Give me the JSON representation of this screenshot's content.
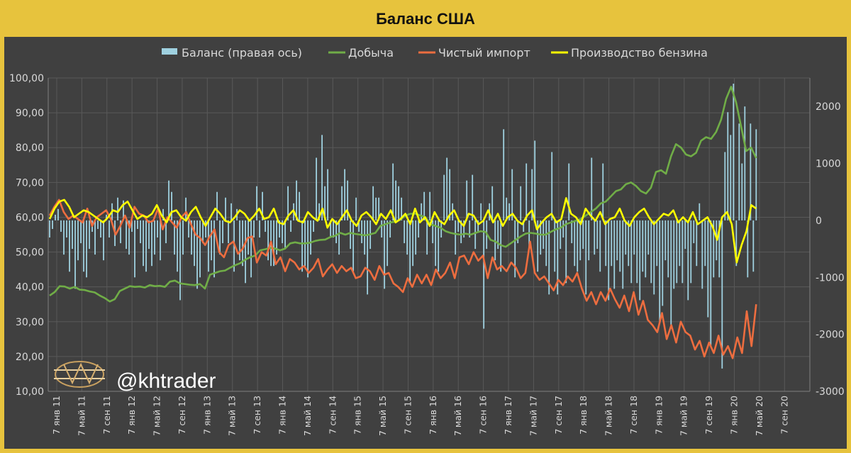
{
  "title": "Баланс США",
  "watermark": "@khtrader",
  "chart_data": {
    "type": "line",
    "title": "Баланс США",
    "left_axis": {
      "ylim": [
        10,
        100
      ],
      "ticks": [
        "10,00",
        "20,00",
        "30,00",
        "40,00",
        "50,00",
        "60,00",
        "70,00",
        "80,00",
        "90,00",
        "100,00"
      ]
    },
    "right_axis": {
      "ylim": [
        -3000,
        2500
      ],
      "ticks": [
        "-3000",
        "-2000",
        "-1000",
        "0",
        "1000",
        "2000"
      ]
    },
    "x_ticks": [
      "7 янв 11",
      "7 май 11",
      "7 сен 11",
      "7 янв 12",
      "7 май 12",
      "7 сен 12",
      "7 янв 13",
      "7 май 13",
      "7 сен 13",
      "7 янв 14",
      "7 май 14",
      "7 сен 14",
      "7 янв 15",
      "7 май 15",
      "7 сен 15",
      "7 янв 16",
      "7 май 16",
      "7 сен 16",
      "7 янв 17",
      "7 май 17",
      "7 сен 17",
      "7 янв 18",
      "7 май 18",
      "7 сен 18",
      "7 янв 19",
      "7 май 19",
      "7 сен 19",
      "7 янв 20",
      "7 май 20",
      "7 сен 20"
    ],
    "grid": true,
    "legend_position": "top",
    "colors": {
      "balance": "#9fd1e0",
      "production": "#70ad47",
      "net_import": "#ed6d3f",
      "gasoline": "#ffff00"
    },
    "series": [
      {
        "name": "Баланс (правая ось)",
        "type": "bar",
        "axis": "right",
        "values": [
          -300,
          -150,
          100,
          200,
          -200,
          -600,
          -300,
          -900,
          -500,
          -1200,
          -700,
          -400,
          -900,
          -1000,
          -500,
          -200,
          -600,
          -150,
          -300,
          -700,
          100,
          -300,
          300,
          -450,
          400,
          -400,
          350,
          -500,
          -600,
          -200,
          -1000,
          -150,
          -400,
          -800,
          -900,
          -500,
          -800,
          -600,
          -300,
          -700,
          200,
          -400,
          700,
          500,
          -600,
          -900,
          -1400,
          -600,
          400,
          -300,
          -600,
          -800,
          -1200,
          -1000,
          -400,
          -300,
          -900,
          -700,
          -1000,
          500,
          -600,
          -400,
          400,
          -400,
          300,
          -900,
          200,
          -700,
          -800,
          -1100,
          -600,
          -1000,
          -300,
          600,
          -300,
          500,
          -200,
          -700,
          -800,
          -800,
          -600,
          -300,
          -400,
          -500,
          600,
          -200,
          300,
          700,
          500,
          -900,
          -800,
          -1000,
          -600,
          -200,
          1100,
          300,
          1500,
          600,
          900,
          -300,
          -300,
          -400,
          -600,
          600,
          900,
          700,
          -500,
          -900,
          400,
          -200,
          -400,
          -600,
          -1300,
          -500,
          600,
          400,
          400,
          -300,
          -1200,
          -800,
          -300,
          1000,
          700,
          600,
          400,
          -400,
          -600,
          -1100,
          -800,
          -600,
          -300,
          300,
          500,
          -600,
          500,
          -400,
          -800,
          -900,
          -300,
          800,
          1100,
          900,
          300,
          -600,
          -200,
          -400,
          -300,
          700,
          -300,
          800,
          -500,
          -200,
          300,
          -1900,
          -500,
          300,
          600,
          -700,
          -500,
          -900,
          1600,
          400,
          300,
          900,
          -1000,
          -400,
          600,
          -200,
          1000,
          -500,
          900,
          1400,
          -900,
          -600,
          -500,
          -800,
          -1300,
          1200,
          -900,
          -1300,
          -500,
          -300,
          -1100,
          1000,
          -400,
          -800,
          -900,
          -700,
          -500,
          -1300,
          -700,
          1100,
          -600,
          -500,
          -900,
          1000,
          -800,
          -1400,
          -800,
          -1200,
          -700,
          -900,
          -1200,
          -600,
          -800,
          -1100,
          -600,
          -1100,
          -1400,
          -900,
          -1000,
          -600,
          -1100,
          -1300,
          -800,
          -1800,
          -1500,
          -700,
          -1000,
          -1900,
          -1200,
          -1100,
          -800,
          -1100,
          -500,
          -1400,
          -1100,
          -400,
          -800,
          300,
          -1200,
          -800,
          -1700,
          -2200,
          -1000,
          -700,
          -1000,
          -2600,
          1200,
          1900,
          1500,
          2400,
          -800,
          1700,
          1000,
          2000,
          -1000,
          1700,
          -900,
          1600
        ]
      },
      {
        "name": "Добыча",
        "type": "line",
        "axis": "left",
        "values": [
          37.5,
          38.5,
          40.2,
          40.1,
          39.5,
          40.0,
          39.2,
          39.1,
          38.7,
          38.4,
          37.5,
          36.8,
          35.8,
          36.5,
          38.8,
          39.5,
          40.2,
          40.0,
          40.1,
          39.8,
          40.5,
          40.2,
          40.3,
          40.0,
          41.5,
          41.8,
          41.0,
          40.8,
          40.6,
          40.5,
          40.8,
          39.5,
          43.5,
          44.0,
          44.5,
          44.7,
          45.5,
          46.2,
          46.8,
          47.8,
          48.5,
          49.0,
          50.5,
          50.8,
          51.2,
          51.0,
          50.5,
          51.0,
          52.5,
          52.8,
          52.5,
          52.5,
          52.7,
          53.2,
          53.5,
          53.6,
          54.3,
          54.7,
          55.5,
          55.0,
          55.5,
          55.2,
          55.0,
          54.8,
          55.1,
          55.5,
          57.5,
          58.0,
          58.5,
          58.8,
          59.3,
          60.5,
          61.0,
          61.0,
          60.5,
          60.0,
          58.0,
          57.5,
          57.0,
          56.0,
          55.5,
          55.2,
          55.0,
          55.3,
          55.0,
          55.5,
          56.0,
          55.8,
          53.5,
          53.0,
          52.0,
          51.5,
          52.5,
          53.5,
          54.5,
          55.3,
          55.5,
          55.3,
          55.0,
          55.0,
          55.8,
          56.5,
          57.0,
          58.0,
          58.5,
          59.0,
          59.5,
          60.5,
          61.5,
          62.5,
          64.0,
          64.5,
          66.0,
          67.5,
          68.0,
          69.5,
          70.0,
          69.0,
          67.5,
          66.8,
          68.5,
          73.0,
          73.5,
          72.5,
          77.5,
          81.0,
          80.0,
          78.0,
          77.5,
          78.5,
          82.0,
          83.0,
          82.5,
          84.5,
          88.0,
          94.0,
          97.5,
          93.0,
          86.0,
          79.0,
          80.0,
          77.0
        ],
        "note_values": "readings from left axis, chronological"
      },
      {
        "name": "Чистый импорт",
        "type": "line",
        "axis": "left",
        "values": [
          60.5,
          63.0,
          65.0,
          61.5,
          59.5,
          60.5,
          59.5,
          58.5,
          62.5,
          57.5,
          60.0,
          61.0,
          62.0,
          59.5,
          55.0,
          57.5,
          60.5,
          57.0,
          63.0,
          61.0,
          60.5,
          58.5,
          59.0,
          62.5,
          56.5,
          60.0,
          58.5,
          57.0,
          60.0,
          61.5,
          58.0,
          55.0,
          54.0,
          52.0,
          54.5,
          56.5,
          50.0,
          48.5,
          52.0,
          53.0,
          49.5,
          51.0,
          54.0,
          54.5,
          47.0,
          50.0,
          49.0,
          53.0,
          46.5,
          48.5,
          44.5,
          48.0,
          47.0,
          45.0,
          46.0,
          44.0,
          45.5,
          48.0,
          43.0,
          45.0,
          46.5,
          44.0,
          46.0,
          44.5,
          45.5,
          42.5,
          43.0,
          45.5,
          44.5,
          42.0,
          46.0,
          43.5,
          44.0,
          41.0,
          40.0,
          38.5,
          42.5,
          40.0,
          43.5,
          41.0,
          43.5,
          40.5,
          45.0,
          42.5,
          44.0,
          47.0,
          42.5,
          48.5,
          49.0,
          46.5,
          50.0,
          47.5,
          49.0,
          42.5,
          48.5,
          45.0,
          46.0,
          44.5,
          47.0,
          45.5,
          42.5,
          44.0,
          53.0,
          44.0,
          42.0,
          43.0,
          41.0,
          39.0,
          42.0,
          40.5,
          43.0,
          41.5,
          44.0,
          39.5,
          36.0,
          38.5,
          35.0,
          38.5,
          36.0,
          39.5,
          36.5,
          34.0,
          37.5,
          33.0,
          38.5,
          32.0,
          36.0,
          30.5,
          29.0,
          27.0,
          32.5,
          25.0,
          29.0,
          24.0,
          30.0,
          27.0,
          26.0,
          22.0,
          24.5,
          20.0,
          24.0,
          21.0,
          26.0,
          20.5,
          23.0,
          19.5,
          25.5,
          21.0,
          33.0,
          23.0,
          35.0
        ]
      },
      {
        "name": "Производство бензина",
        "type": "line",
        "axis": "left",
        "values": [
          59.5,
          62.5,
          64.5,
          65.0,
          63.0,
          60.0,
          61.0,
          62.0,
          61.5,
          60.5,
          59.5,
          58.5,
          60.0,
          62.0,
          61.5,
          63.5,
          64.5,
          62.0,
          59.5,
          60.5,
          60.0,
          61.0,
          63.5,
          60.5,
          58.5,
          61.5,
          62.0,
          60.0,
          59.0,
          61.5,
          63.0,
          60.0,
          57.5,
          60.0,
          62.5,
          61.0,
          59.0,
          58.5,
          60.0,
          62.0,
          61.0,
          59.0,
          60.5,
          62.5,
          59.5,
          60.0,
          62.5,
          58.5,
          58.0,
          60.5,
          62.0,
          59.0,
          58.5,
          61.5,
          60.0,
          59.0,
          62.5,
          57.0,
          59.5,
          58.0,
          60.0,
          62.0,
          59.0,
          57.5,
          60.5,
          61.5,
          60.0,
          58.0,
          61.0,
          59.5,
          62.0,
          58.5,
          59.5,
          61.0,
          58.0,
          62.5,
          58.5,
          60.0,
          57.5,
          61.5,
          59.0,
          58.0,
          60.5,
          62.0,
          59.0,
          57.5,
          61.0,
          60.5,
          58.0,
          59.0,
          62.0,
          58.5,
          61.0,
          57.5,
          60.0,
          61.0,
          59.0,
          58.0,
          60.5,
          62.0,
          56.5,
          58.5,
          60.0,
          61.0,
          58.5,
          59.5,
          65.5,
          61.0,
          60.0,
          58.0,
          62.5,
          60.5,
          59.0,
          61.5,
          58.0,
          59.5,
          60.0,
          62.5,
          59.0,
          57.5,
          60.0,
          61.5,
          62.5,
          60.0,
          58.0,
          59.5,
          61.0,
          60.5,
          62.0,
          58.5,
          60.0,
          58.5,
          61.5,
          58.0,
          59.0,
          60.0,
          57.5,
          53.5,
          60.0,
          61.5,
          58.0,
          47.0,
          52.0,
          56.0,
          63.5,
          62.5
        ]
      }
    ]
  }
}
